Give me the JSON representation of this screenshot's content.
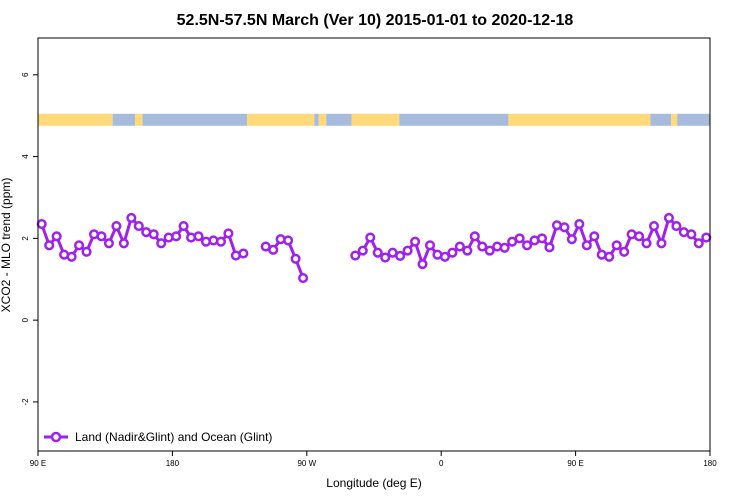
{
  "chart_data": {
    "type": "line",
    "title": "52.5N-57.5N March (Ver 10)   2015-01-01 to 2020-12-18",
    "xlabel": "Longitude (deg E)",
    "ylabel": "XCO2 - MLO trend (ppm)",
    "xlim": [
      90,
      540
    ],
    "ylim": [
      -3.2,
      6.9
    ],
    "x_ticks": [
      {
        "value": 90,
        "label": "90 E"
      },
      {
        "value": 180,
        "label": "180"
      },
      {
        "value": 270,
        "label": "90 W"
      },
      {
        "value": 360,
        "label": "0"
      },
      {
        "value": 450,
        "label": "90 E"
      },
      {
        "value": 540,
        "label": "180"
      }
    ],
    "y_ticks": [
      {
        "value": -2,
        "label": "-2"
      },
      {
        "value": 0,
        "label": "0"
      },
      {
        "value": 2,
        "label": "2"
      },
      {
        "value": 4,
        "label": "4"
      },
      {
        "value": 6,
        "label": "6"
      }
    ],
    "land_ocean_band": {
      "y_center": 4.9,
      "land_color": "#FFD97A",
      "ocean_color": "#A7BCDD",
      "segments": [
        {
          "from": 90,
          "to": 140,
          "type": "land"
        },
        {
          "from": 140,
          "to": 155,
          "type": "ocean"
        },
        {
          "from": 155,
          "to": 160,
          "type": "land"
        },
        {
          "from": 160,
          "to": 230,
          "type": "ocean"
        },
        {
          "from": 230,
          "to": 275,
          "type": "land"
        },
        {
          "from": 275,
          "to": 278,
          "type": "ocean"
        },
        {
          "from": 278,
          "to": 283,
          "type": "land"
        },
        {
          "from": 283,
          "to": 300,
          "type": "ocean"
        },
        {
          "from": 300,
          "to": 332,
          "type": "land"
        },
        {
          "from": 332,
          "to": 405,
          "type": "ocean"
        },
        {
          "from": 405,
          "to": 500,
          "type": "land"
        },
        {
          "from": 500,
          "to": 514,
          "type": "ocean"
        },
        {
          "from": 514,
          "to": 518,
          "type": "land"
        },
        {
          "from": 518,
          "to": 540,
          "type": "ocean"
        }
      ]
    },
    "series": [
      {
        "name": "Land (Nadir&Glint) and Ocean (Glint)",
        "color": "#A020F0",
        "x": [
          92.5,
          97.5,
          102.5,
          107.5,
          112.5,
          117.5,
          122.5,
          127.5,
          132.5,
          137.5,
          142.5,
          147.5,
          152.5,
          157.5,
          162.5,
          167.5,
          172.5,
          177.5,
          182.5,
          187.5,
          192.5,
          197.5,
          202.5,
          207.5,
          212.5,
          217.5,
          222.5,
          227.5,
          232.5,
          null,
          242.5,
          247.5,
          252.5,
          257.5,
          262.5,
          267.5,
          null,
          302.5,
          307.5,
          312.5,
          317.5,
          322.5,
          327.5,
          332.5,
          337.5,
          342.5,
          347.5,
          352.5,
          357.5,
          362.5,
          367.5,
          372.5,
          377.5,
          382.5,
          387.5,
          392.5,
          397.5,
          402.5,
          407.5,
          412.5,
          417.5,
          422.5,
          427.5,
          432.5,
          437.5,
          442.5,
          447.5,
          452.5,
          457.5,
          462.5,
          467.5,
          472.5,
          477.5,
          482.5,
          487.5,
          492.5,
          497.5,
          502.5,
          507.5,
          512.5,
          517.5,
          522.5,
          527.5,
          532.5,
          537.5
        ],
        "y": [
          2.35,
          1.83,
          2.05,
          1.6,
          1.55,
          1.83,
          1.67,
          2.1,
          2.05,
          1.88,
          2.3,
          1.88,
          2.5,
          2.3,
          2.15,
          2.1,
          1.88,
          2.02,
          2.05,
          2.3,
          2.02,
          2.05,
          1.92,
          1.95,
          1.92,
          2.12,
          1.58,
          1.63,
          null,
          null,
          1.8,
          1.72,
          1.98,
          1.95,
          1.5,
          1.03,
          null,
          1.58,
          1.7,
          2.02,
          1.65,
          1.53,
          1.65,
          1.57,
          1.7,
          1.92,
          1.37,
          1.83,
          1.6,
          1.55,
          1.65,
          1.8,
          1.7,
          2.05,
          1.8,
          1.7,
          1.8,
          1.77,
          1.92,
          2.0,
          1.83,
          1.95,
          2.0,
          1.78,
          2.32,
          2.27,
          1.98,
          2.35,
          1.83,
          2.05,
          1.6,
          1.55,
          1.83,
          1.67,
          2.1,
          2.05,
          1.88,
          2.3,
          1.88,
          2.5,
          2.3,
          2.15,
          2.1,
          1.88,
          2.02
        ]
      }
    ],
    "legend": {
      "position": "bottom-left",
      "entries": [
        "Land (Nadir&Glint) and Ocean (Glint)"
      ]
    }
  }
}
